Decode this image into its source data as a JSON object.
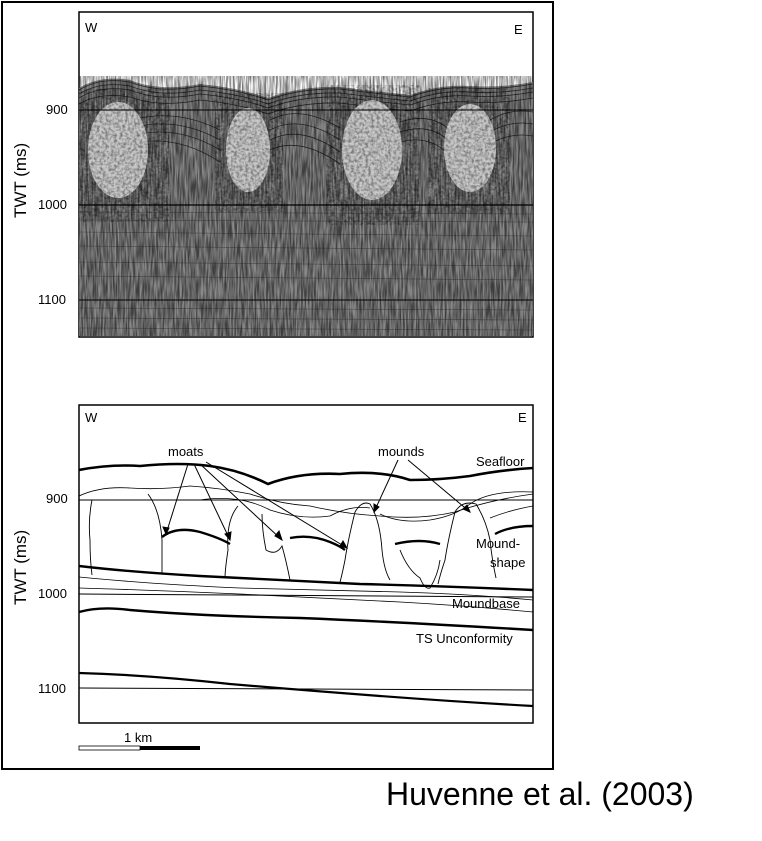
{
  "figure": {
    "top_panel": {
      "west_label": "W",
      "east_label": "E",
      "y_axis_label": "TWT (ms)",
      "y_ticks": [
        "900",
        "1000",
        "1100"
      ]
    },
    "bottom_panel": {
      "west_label": "W",
      "east_label": "E",
      "y_axis_label": "TWT (ms)",
      "y_ticks": [
        "900",
        "1000",
        "1100"
      ],
      "annotations": {
        "moats": "moats",
        "mounds": "mounds",
        "seafloor": "Seafloor",
        "mound_shape_1": "Mound-",
        "mound_shape_2": "shape",
        "moundbase": "Moundbase",
        "ts_unconformity": "TS Unconformity"
      },
      "scale_bar_label": "1 km"
    }
  },
  "citation": "Huvenne et al. (2003)"
}
